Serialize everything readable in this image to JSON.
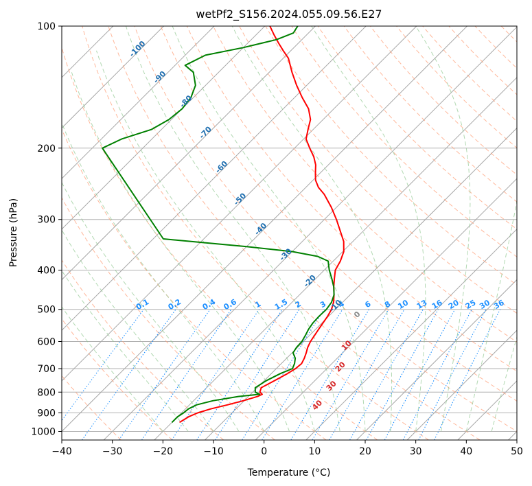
{
  "chart_data": {
    "type": "line",
    "title": "wetPf2_S156.2024.055.09.56.E27",
    "xlabel": "Temperature (°C)",
    "ylabel": "Pressure (hPa)",
    "xlim": [
      -40,
      50
    ],
    "ylim": [
      1050,
      100
    ],
    "y_scale": "log",
    "skew": "skew-T (isotherms slant right with height)",
    "grid": true,
    "x_ticks": [
      -40,
      -30,
      -20,
      -10,
      0,
      10,
      20,
      30,
      40,
      50
    ],
    "x_tick_labels": [
      "−40",
      "−30",
      "−20",
      "−10",
      "0",
      "10",
      "20",
      "30",
      "40",
      "50"
    ],
    "y_ticks": [
      100,
      200,
      300,
      400,
      500,
      600,
      700,
      800,
      900,
      1000
    ],
    "y_tick_labels": [
      "100",
      "200",
      "300",
      "400",
      "500",
      "600",
      "700",
      "800",
      "900",
      "1000"
    ],
    "colors": {
      "temperature": "#ff0000",
      "dewpoint": "#008000",
      "isotherm": "#888888",
      "dry_adiabat": "#ffa07a",
      "moist_adiabat": "#90c890",
      "mixing_ratio": "#1e90ff",
      "isotherm_label": "#1f6fb0",
      "moist_label": "#d62728"
    },
    "series": [
      {
        "role": "temperature",
        "points": [
          [
            950,
            -18.5
          ],
          [
            920,
            -17.8
          ],
          [
            900,
            -16.8
          ],
          [
            880,
            -15.0
          ],
          [
            860,
            -12.5
          ],
          [
            840,
            -10.2
          ],
          [
            820,
            -8.2
          ],
          [
            810,
            -7.7
          ],
          [
            800,
            -8.6
          ],
          [
            780,
            -9.2
          ],
          [
            750,
            -8.0
          ],
          [
            720,
            -6.8
          ],
          [
            700,
            -6.2
          ],
          [
            680,
            -6.0
          ],
          [
            660,
            -6.5
          ],
          [
            640,
            -7.2
          ],
          [
            620,
            -8.0
          ],
          [
            600,
            -8.6
          ],
          [
            580,
            -9.0
          ],
          [
            560,
            -9.4
          ],
          [
            540,
            -9.8
          ],
          [
            520,
            -10.2
          ],
          [
            500,
            -10.8
          ],
          [
            480,
            -11.8
          ],
          [
            460,
            -13.2
          ],
          [
            440,
            -14.8
          ],
          [
            420,
            -16.3
          ],
          [
            400,
            -17.8
          ],
          [
            380,
            -18.6
          ],
          [
            360,
            -19.8
          ],
          [
            340,
            -21.8
          ],
          [
            320,
            -24.6
          ],
          [
            300,
            -27.6
          ],
          [
            280,
            -31.0
          ],
          [
            260,
            -35.0
          ],
          [
            250,
            -37.5
          ],
          [
            240,
            -39.5
          ],
          [
            230,
            -41.0
          ],
          [
            220,
            -42.5
          ],
          [
            210,
            -44.5
          ],
          [
            200,
            -47.0
          ],
          [
            190,
            -49.5
          ],
          [
            180,
            -51.0
          ],
          [
            170,
            -52.5
          ],
          [
            160,
            -55.0
          ],
          [
            150,
            -58.5
          ],
          [
            140,
            -62.0
          ],
          [
            130,
            -65.5
          ],
          [
            120,
            -69.0
          ],
          [
            115,
            -71.5
          ],
          [
            110,
            -74.0
          ],
          [
            105,
            -76.5
          ],
          [
            100,
            -79.0
          ]
        ]
      },
      {
        "role": "dewpoint",
        "points": [
          [
            950,
            -20.0
          ],
          [
            920,
            -20.0
          ],
          [
            900,
            -19.6
          ],
          [
            880,
            -19.4
          ],
          [
            860,
            -18.6
          ],
          [
            840,
            -16.2
          ],
          [
            820,
            -12.0
          ],
          [
            810,
            -8.2
          ],
          [
            800,
            -9.5
          ],
          [
            780,
            -10.4
          ],
          [
            750,
            -9.6
          ],
          [
            720,
            -8.2
          ],
          [
            700,
            -6.8
          ],
          [
            680,
            -7.4
          ],
          [
            660,
            -8.3
          ],
          [
            640,
            -9.8
          ],
          [
            620,
            -10.2
          ],
          [
            600,
            -10.3
          ],
          [
            580,
            -10.8
          ],
          [
            560,
            -11.4
          ],
          [
            540,
            -11.8
          ],
          [
            520,
            -11.9
          ],
          [
            500,
            -11.8
          ],
          [
            480,
            -12.2
          ],
          [
            460,
            -13.2
          ],
          [
            440,
            -14.8
          ],
          [
            420,
            -16.8
          ],
          [
            400,
            -19.0
          ],
          [
            390,
            -20.0
          ],
          [
            380,
            -21.0
          ],
          [
            370,
            -24.0
          ],
          [
            360,
            -30.0
          ],
          [
            350,
            -40.0
          ],
          [
            340,
            -52.0
          ],
          [
            335,
            -58.0
          ],
          [
            200,
            -88.0
          ],
          [
            190,
            -86.0
          ],
          [
            180,
            -82.0
          ],
          [
            170,
            -80.5
          ],
          [
            160,
            -80.0
          ],
          [
            150,
            -80.5
          ],
          [
            140,
            -82.0
          ],
          [
            130,
            -85.0
          ],
          [
            125,
            -88.0
          ],
          [
            118,
            -86.0
          ],
          [
            113,
            -80.0
          ],
          [
            108,
            -75.0
          ],
          [
            104,
            -73.0
          ],
          [
            100,
            -73.5
          ]
        ]
      }
    ],
    "dry_adiabat_labels": [
      "-100",
      "-90",
      "-80",
      "-70",
      "-60",
      "-50",
      "-40",
      "-30",
      "-20",
      "-10"
    ],
    "moist_adiabat_labels": [
      "0",
      "10",
      "20",
      "30",
      "40"
    ],
    "mixing_ratio_labels": [
      "0.1",
      "0.2",
      "0.4",
      "0.6",
      "1",
      "1.5",
      "2",
      "3",
      "4",
      "6",
      "8",
      "10",
      "13",
      "16",
      "20",
      "25",
      "30",
      "36"
    ]
  }
}
